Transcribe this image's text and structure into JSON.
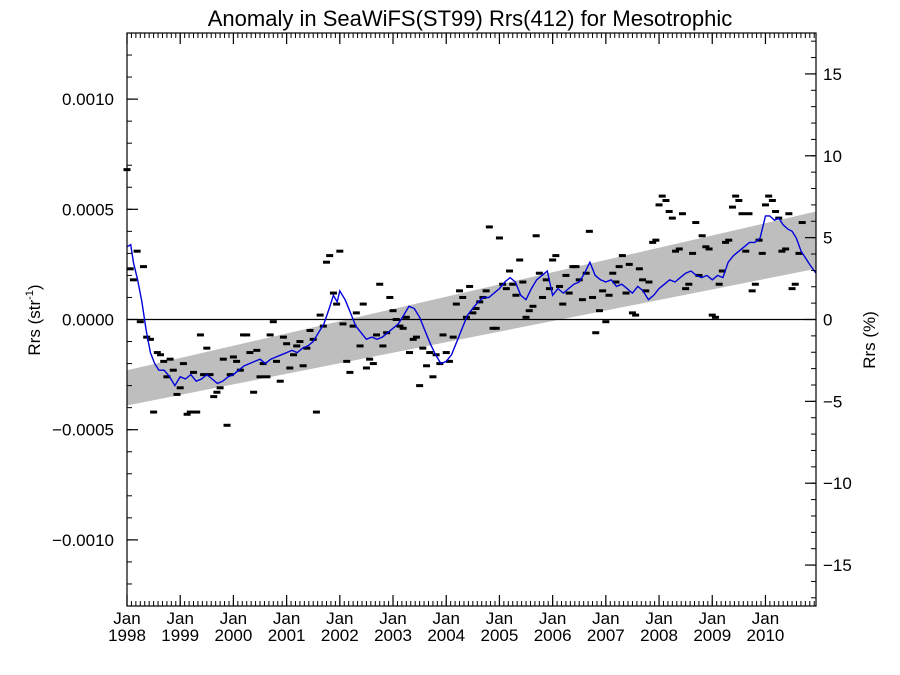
{
  "chart_data": {
    "type": "scatter",
    "title": "Anomaly in SeaWiFS(ST99) Rrs(412) for Mesotrophic",
    "ylabel_left": {
      "base": "Rrs (str",
      "sup": "-1",
      "close": ")"
    },
    "ylabel_right": "Rrs (%)",
    "x_range": [
      1998.0,
      2010.95
    ],
    "ylim_left": [
      -0.0013,
      0.0013
    ],
    "ylim_right": [
      -17.5,
      17.5
    ],
    "grid": false,
    "left_ticks": [
      {
        "value": 0.001,
        "label": "0.0010"
      },
      {
        "value": 0.0005,
        "label": "0.0005"
      },
      {
        "value": 0.0,
        "label": "0.0000"
      },
      {
        "value": -0.0005,
        "label": "−0.0005"
      },
      {
        "value": -0.001,
        "label": "−0.0010"
      }
    ],
    "right_ticks": [
      {
        "value": 15,
        "label": "15"
      },
      {
        "value": 10,
        "label": "10"
      },
      {
        "value": 5,
        "label": "5"
      },
      {
        "value": 0,
        "label": "0"
      },
      {
        "value": -5,
        "label": "−5"
      },
      {
        "value": -10,
        "label": "−10"
      },
      {
        "value": -15,
        "label": "−15"
      }
    ],
    "x_ticks": [
      {
        "value": 1998,
        "month": "Jan",
        "year": "1998"
      },
      {
        "value": 1999,
        "month": "Jan",
        "year": "1999"
      },
      {
        "value": 2000,
        "month": "Jan",
        "year": "2000"
      },
      {
        "value": 2001,
        "month": "Jan",
        "year": "2001"
      },
      {
        "value": 2002,
        "month": "Jan",
        "year": "2002"
      },
      {
        "value": 2003,
        "month": "Jan",
        "year": "2003"
      },
      {
        "value": 2004,
        "month": "Jan",
        "year": "2004"
      },
      {
        "value": 2005,
        "month": "Jan",
        "year": "2005"
      },
      {
        "value": 2006,
        "month": "Jan",
        "year": "2006"
      },
      {
        "value": 2007,
        "month": "Jan",
        "year": "2007"
      },
      {
        "value": 2008,
        "month": "Jan",
        "year": "2008"
      },
      {
        "value": 2009,
        "month": "Jan",
        "year": "2009"
      },
      {
        "value": 2010,
        "month": "Jan",
        "year": "2010"
      }
    ],
    "trend_band": {
      "color": "#bebebe",
      "x": [
        1998.0,
        2010.95
      ],
      "upper": [
        -0.00023,
        0.00049
      ],
      "lower": [
        -0.00039,
        0.00023
      ]
    },
    "zero_line": 0.0,
    "running_mean_color": "#0000dd",
    "marker_color": "#000000",
    "scatter_points": [
      [
        1998.0,
        0.00068
      ],
      [
        1998.06,
        0.00023
      ],
      [
        1998.12,
        0.00018
      ],
      [
        1998.19,
        0.00031
      ],
      [
        1998.25,
        -1e-05
      ],
      [
        1998.31,
        0.00024
      ],
      [
        1998.37,
        -8e-05
      ],
      [
        1998.44,
        -9e-05
      ],
      [
        1998.5,
        -0.00042
      ],
      [
        1998.57,
        -0.00015
      ],
      [
        1998.63,
        -0.00016
      ],
      [
        1998.69,
        -0.00019
      ],
      [
        1998.75,
        -0.00026
      ],
      [
        1998.81,
        -0.00018
      ],
      [
        1998.87,
        -0.00023
      ],
      [
        1998.94,
        -0.00034
      ],
      [
        1999.0,
        -0.00031
      ],
      [
        1999.06,
        -0.0002
      ],
      [
        1999.13,
        -0.00043
      ],
      [
        1999.19,
        -0.00042
      ],
      [
        1999.25,
        -0.00024
      ],
      [
        1999.31,
        -0.00042
      ],
      [
        1999.38,
        -7e-05
      ],
      [
        1999.44,
        -0.00025
      ],
      [
        1999.5,
        -0.00013
      ],
      [
        1999.56,
        -0.00025
      ],
      [
        1999.63,
        -0.00035
      ],
      [
        1999.69,
        -0.00033
      ],
      [
        1999.75,
        -0.00031
      ],
      [
        1999.81,
        -0.00018
      ],
      [
        1999.88,
        -0.00048
      ],
      [
        1999.94,
        -0.00025
      ],
      [
        2000.0,
        -0.00017
      ],
      [
        2000.06,
        -0.00019
      ],
      [
        2000.13,
        -0.00023
      ],
      [
        2000.19,
        -7e-05
      ],
      [
        2000.25,
        -7e-05
      ],
      [
        2000.31,
        -0.00015
      ],
      [
        2000.38,
        -0.00033
      ],
      [
        2000.44,
        -0.00014
      ],
      [
        2000.5,
        -0.00026
      ],
      [
        2000.56,
        -0.0002
      ],
      [
        2000.63,
        -0.00026
      ],
      [
        2000.69,
        -7e-05
      ],
      [
        2000.75,
        -1e-05
      ],
      [
        2000.81,
        -0.00019
      ],
      [
        2000.88,
        -0.00028
      ],
      [
        2000.94,
        -8e-05
      ],
      [
        2001.0,
        -0.00011
      ],
      [
        2001.06,
        -0.00022
      ],
      [
        2001.13,
        -0.00016
      ],
      [
        2001.19,
        -0.00012
      ],
      [
        2001.25,
        -0.0001
      ],
      [
        2001.31,
        -0.00021
      ],
      [
        2001.38,
        -0.00013
      ],
      [
        2001.44,
        -5e-05
      ],
      [
        2001.5,
        -9e-05
      ],
      [
        2001.56,
        -0.00042
      ],
      [
        2001.63,
        2e-05
      ],
      [
        2001.69,
        -3e-05
      ],
      [
        2001.75,
        0.00026
      ],
      [
        2001.81,
        0.00029
      ],
      [
        2001.88,
        0.00012
      ],
      [
        2001.94,
        7e-05
      ],
      [
        2002.0,
        0.00031
      ],
      [
        2002.06,
        -2e-05
      ],
      [
        2002.13,
        -0.00019
      ],
      [
        2002.19,
        -0.00024
      ],
      [
        2002.25,
        -3e-05
      ],
      [
        2002.31,
        3e-05
      ],
      [
        2002.38,
        -0.00012
      ],
      [
        2002.44,
        7e-05
      ],
      [
        2002.5,
        -0.00022
      ],
      [
        2002.56,
        -0.00018
      ],
      [
        2002.63,
        -0.0002
      ],
      [
        2002.69,
        -7e-05
      ],
      [
        2002.75,
        0.00016
      ],
      [
        2002.81,
        -0.00012
      ],
      [
        2002.88,
        -6e-05
      ],
      [
        2002.94,
        0.0001
      ],
      [
        2003.0,
        4e-05
      ],
      [
        2003.06,
        0.0
      ],
      [
        2003.13,
        -3e-05
      ],
      [
        2003.19,
        -4e-05
      ],
      [
        2003.25,
        1e-05
      ],
      [
        2003.31,
        -0.00015
      ],
      [
        2003.38,
        -9e-05
      ],
      [
        2003.44,
        -8e-05
      ],
      [
        2003.5,
        -0.0003
      ],
      [
        2003.56,
        -0.00013
      ],
      [
        2003.63,
        -0.00021
      ],
      [
        2003.69,
        -0.00015
      ],
      [
        2003.75,
        -0.00026
      ],
      [
        2003.81,
        -0.00016
      ],
      [
        2003.88,
        -0.0002
      ],
      [
        2003.94,
        -7e-05
      ],
      [
        2004.0,
        -0.00015
      ],
      [
        2004.06,
        -0.00019
      ],
      [
        2004.13,
        -8e-05
      ],
      [
        2004.19,
        7e-05
      ],
      [
        2004.25,
        0.00013
      ],
      [
        2004.31,
        0.0001
      ],
      [
        2004.38,
        1e-05
      ],
      [
        2004.44,
        0.00015
      ],
      [
        2004.5,
        3e-05
      ],
      [
        2004.56,
        5e-05
      ],
      [
        2004.63,
        8e-05
      ],
      [
        2004.69,
        0.0001
      ],
      [
        2004.75,
        0.00013
      ],
      [
        2004.81,
        0.00042
      ],
      [
        2004.88,
        -4e-05
      ],
      [
        2004.94,
        -4e-05
      ],
      [
        2005.0,
        0.00037
      ],
      [
        2005.06,
        0.00016
      ],
      [
        2005.13,
        0.00014
      ],
      [
        2005.19,
        0.00022
      ],
      [
        2005.25,
        0.00016
      ],
      [
        2005.31,
        0.00011
      ],
      [
        2005.38,
        0.00027
      ],
      [
        2005.44,
        0.00017
      ],
      [
        2005.5,
        1e-05
      ],
      [
        2005.56,
        4e-05
      ],
      [
        2005.63,
        6e-05
      ],
      [
        2005.69,
        0.00038
      ],
      [
        2005.75,
        0.00021
      ],
      [
        2005.81,
        0.0001
      ],
      [
        2005.88,
        0.00018
      ],
      [
        2005.94,
        0.00014
      ],
      [
        2006.0,
        0.00027
      ],
      [
        2006.06,
        0.00029
      ],
      [
        2006.13,
        0.00015
      ],
      [
        2006.19,
        7e-05
      ],
      [
        2006.25,
        0.0002
      ],
      [
        2006.31,
        0.00012
      ],
      [
        2006.38,
        0.00024
      ],
      [
        2006.44,
        0.00024
      ],
      [
        2006.5,
        0.00018
      ],
      [
        2006.56,
        9e-05
      ],
      [
        2006.63,
        0.00021
      ],
      [
        2006.69,
        0.0004
      ],
      [
        2006.75,
        0.0001
      ],
      [
        2006.81,
        -6e-05
      ],
      [
        2006.88,
        4e-05
      ],
      [
        2006.94,
        0.00013
      ],
      [
        2007.0,
        -1e-05
      ],
      [
        2007.06,
        0.00011
      ],
      [
        2007.13,
        0.00021
      ],
      [
        2007.19,
        0.00017
      ],
      [
        2007.25,
        0.00024
      ],
      [
        2007.31,
        0.00029
      ],
      [
        2007.38,
        0.00012
      ],
      [
        2007.44,
        0.00025
      ],
      [
        2007.5,
        3e-05
      ],
      [
        2007.56,
        2e-05
      ],
      [
        2007.63,
        0.00023
      ],
      [
        2007.69,
        0.00018
      ],
      [
        2007.75,
        0.00013
      ],
      [
        2007.81,
        0.00017
      ],
      [
        2007.88,
        0.00035
      ],
      [
        2007.94,
        0.00036
      ],
      [
        2008.0,
        0.00052
      ],
      [
        2008.06,
        0.00056
      ],
      [
        2008.13,
        0.00054
      ],
      [
        2008.19,
        0.00049
      ],
      [
        2008.25,
        0.00046
      ],
      [
        2008.31,
        0.00031
      ],
      [
        2008.38,
        0.00032
      ],
      [
        2008.44,
        0.00048
      ],
      [
        2008.5,
        0.00014
      ],
      [
        2008.56,
        0.00016
      ],
      [
        2008.63,
        0.0003
      ],
      [
        2008.69,
        0.00044
      ],
      [
        2008.75,
        0.0002
      ],
      [
        2008.81,
        0.00038
      ],
      [
        2008.88,
        0.00033
      ],
      [
        2008.94,
        0.00032
      ],
      [
        2009.0,
        2e-05
      ],
      [
        2009.06,
        1e-05
      ],
      [
        2009.13,
        0.00016
      ],
      [
        2009.19,
        0.00022
      ],
      [
        2009.25,
        0.00035
      ],
      [
        2009.31,
        0.00036
      ],
      [
        2009.38,
        0.00051
      ],
      [
        2009.44,
        0.00056
      ],
      [
        2009.5,
        0.00054
      ],
      [
        2009.56,
        0.00048
      ],
      [
        2009.63,
        0.00031
      ],
      [
        2009.69,
        0.00048
      ],
      [
        2009.75,
        0.00013
      ],
      [
        2009.81,
        0.00016
      ],
      [
        2009.88,
        0.00036
      ],
      [
        2009.94,
        0.0003
      ],
      [
        2010.0,
        0.00052
      ],
      [
        2010.06,
        0.00056
      ],
      [
        2010.13,
        0.00054
      ],
      [
        2010.19,
        0.00049
      ],
      [
        2010.25,
        0.00046
      ],
      [
        2010.31,
        0.00031
      ],
      [
        2010.38,
        0.00032
      ],
      [
        2010.44,
        0.00048
      ],
      [
        2010.5,
        0.00014
      ],
      [
        2010.56,
        0.00016
      ],
      [
        2010.63,
        0.0003
      ],
      [
        2010.69,
        0.00044
      ]
    ],
    "running_mean": [
      [
        1998.0,
        0.00033
      ],
      [
        1998.07,
        0.00034
      ],
      [
        1998.12,
        0.00026
      ],
      [
        1998.2,
        0.00018
      ],
      [
        1998.28,
        8e-05
      ],
      [
        1998.36,
        -5e-05
      ],
      [
        1998.44,
        -0.00015
      ],
      [
        1998.52,
        -0.0002
      ],
      [
        1998.6,
        -0.00023
      ],
      [
        1998.7,
        -0.00023
      ],
      [
        1998.8,
        -0.00026
      ],
      [
        1998.9,
        -0.0003
      ],
      [
        1999.0,
        -0.00026
      ],
      [
        1999.1,
        -0.00027
      ],
      [
        1999.2,
        -0.00025
      ],
      [
        1999.3,
        -0.00028
      ],
      [
        1999.4,
        -0.00027
      ],
      [
        1999.5,
        -0.00025
      ],
      [
        1999.6,
        -0.00027
      ],
      [
        1999.7,
        -0.00029
      ],
      [
        1999.8,
        -0.00028
      ],
      [
        1999.9,
        -0.00026
      ],
      [
        2000.0,
        -0.00025
      ],
      [
        2000.1,
        -0.00023
      ],
      [
        2000.2,
        -0.00021
      ],
      [
        2000.3,
        -0.0002
      ],
      [
        2000.4,
        -0.00019
      ],
      [
        2000.5,
        -0.00018
      ],
      [
        2000.6,
        -0.0002
      ],
      [
        2000.7,
        -0.00018
      ],
      [
        2000.8,
        -0.00017
      ],
      [
        2000.9,
        -0.00016
      ],
      [
        2001.0,
        -0.00015
      ],
      [
        2001.1,
        -0.00014
      ],
      [
        2001.2,
        -0.00015
      ],
      [
        2001.3,
        -0.00013
      ],
      [
        2001.4,
        -0.00012
      ],
      [
        2001.5,
        -0.0001
      ],
      [
        2001.6,
        -6e-05
      ],
      [
        2001.7,
        -2e-05
      ],
      [
        2001.8,
        5e-05
      ],
      [
        2001.88,
        0.00011
      ],
      [
        2001.95,
        8e-05
      ],
      [
        2002.0,
        0.00013
      ],
      [
        2002.1,
        9e-05
      ],
      [
        2002.2,
        3e-05
      ],
      [
        2002.3,
        -3e-05
      ],
      [
        2002.4,
        -6e-05
      ],
      [
        2002.5,
        -9e-05
      ],
      [
        2002.6,
        -8e-05
      ],
      [
        2002.7,
        -9e-05
      ],
      [
        2002.8,
        -8e-05
      ],
      [
        2002.9,
        -6e-05
      ],
      [
        2003.0,
        -4e-05
      ],
      [
        2003.1,
        -2e-05
      ],
      [
        2003.2,
        2e-05
      ],
      [
        2003.3,
        6e-05
      ],
      [
        2003.4,
        5e-05
      ],
      [
        2003.5,
        1e-05
      ],
      [
        2003.6,
        -5e-05
      ],
      [
        2003.7,
        -0.00011
      ],
      [
        2003.8,
        -0.00016
      ],
      [
        2003.9,
        -0.0002
      ],
      [
        2004.0,
        -0.00019
      ],
      [
        2004.1,
        -0.00016
      ],
      [
        2004.2,
        -0.0001
      ],
      [
        2004.3,
        -4e-05
      ],
      [
        2004.4,
        2e-05
      ],
      [
        2004.5,
        5e-05
      ],
      [
        2004.6,
        8e-05
      ],
      [
        2004.7,
        0.0001
      ],
      [
        2004.8,
        0.0001
      ],
      [
        2004.9,
        0.00012
      ],
      [
        2005.0,
        0.00014
      ],
      [
        2005.1,
        0.00017
      ],
      [
        2005.2,
        0.00019
      ],
      [
        2005.3,
        0.00017
      ],
      [
        2005.4,
        0.00011
      ],
      [
        2005.5,
        9e-05
      ],
      [
        2005.6,
        0.00014
      ],
      [
        2005.7,
        0.00018
      ],
      [
        2005.8,
        0.0002
      ],
      [
        2005.9,
        0.00022
      ],
      [
        2006.0,
        0.00011
      ],
      [
        2006.1,
        0.00014
      ],
      [
        2006.2,
        0.00012
      ],
      [
        2006.3,
        0.00014
      ],
      [
        2006.4,
        0.00016
      ],
      [
        2006.5,
        0.00017
      ],
      [
        2006.6,
        0.00021
      ],
      [
        2006.7,
        0.00026
      ],
      [
        2006.8,
        0.0002
      ],
      [
        2006.9,
        0.00018
      ],
      [
        2007.0,
        0.00017
      ],
      [
        2007.1,
        0.00018
      ],
      [
        2007.2,
        0.00015
      ],
      [
        2007.3,
        0.00016
      ],
      [
        2007.4,
        0.00014
      ],
      [
        2007.5,
        0.00012
      ],
      [
        2007.6,
        0.00015
      ],
      [
        2007.7,
        0.00013
      ],
      [
        2007.8,
        9e-05
      ],
      [
        2007.9,
        0.00011
      ],
      [
        2008.0,
        0.00014
      ],
      [
        2008.1,
        0.00016
      ],
      [
        2008.2,
        0.00018
      ],
      [
        2008.3,
        0.00017
      ],
      [
        2008.4,
        0.00019
      ],
      [
        2008.5,
        0.00021
      ],
      [
        2008.6,
        0.00022
      ],
      [
        2008.7,
        0.0002
      ],
      [
        2008.8,
        0.00019
      ],
      [
        2008.9,
        0.0002
      ],
      [
        2009.0,
        0.00018
      ],
      [
        2009.1,
        0.0002
      ],
      [
        2009.2,
        0.00019
      ],
      [
        2009.3,
        0.00026
      ],
      [
        2009.4,
        0.00029
      ],
      [
        2009.5,
        0.00031
      ],
      [
        2009.6,
        0.00033
      ],
      [
        2009.7,
        0.00035
      ],
      [
        2009.8,
        0.00035
      ],
      [
        2009.9,
        0.00037
      ],
      [
        2010.0,
        0.00047
      ],
      [
        2010.08,
        0.00047
      ],
      [
        2010.17,
        0.00045
      ],
      [
        2010.25,
        0.00046
      ],
      [
        2010.33,
        0.00043
      ],
      [
        2010.42,
        0.00041
      ],
      [
        2010.5,
        0.0004
      ],
      [
        2010.58,
        0.00037
      ],
      [
        2010.67,
        0.00031
      ],
      [
        2010.75,
        0.00028
      ],
      [
        2010.83,
        0.00025
      ],
      [
        2010.95,
        0.00021
      ]
    ]
  }
}
